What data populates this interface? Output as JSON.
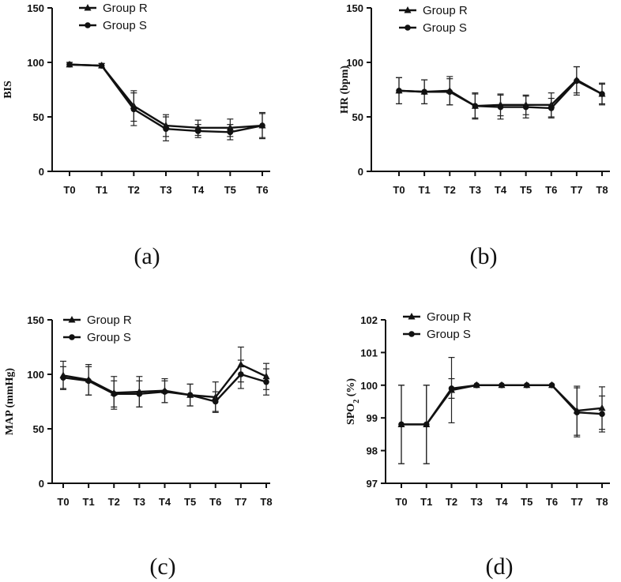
{
  "chart_data": [
    {
      "id": "a",
      "type": "line",
      "caption": "(a)",
      "ylabel": "BIS",
      "ylim": [
        0,
        150
      ],
      "yticks": [
        0,
        50,
        100,
        150
      ],
      "categories": [
        "T0",
        "T1",
        "T2",
        "T3",
        "T4",
        "T5",
        "T6"
      ],
      "legend": [
        "Group R",
        "Group S"
      ],
      "series": [
        {
          "name": "Group R",
          "marker": "triangle",
          "values": [
            98,
            97,
            60,
            42,
            40,
            40,
            42
          ],
          "err": [
            2,
            2,
            14,
            10,
            7,
            8,
            11
          ]
        },
        {
          "name": "Group S",
          "marker": "circle",
          "values": [
            98,
            97,
            57,
            39,
            37,
            36,
            42
          ],
          "err": [
            2,
            2,
            15,
            11,
            6,
            7,
            12
          ]
        }
      ]
    },
    {
      "id": "b",
      "type": "line",
      "caption": "(b)",
      "ylabel": "HR (bpm)",
      "ylim": [
        0,
        150
      ],
      "yticks": [
        0,
        50,
        100,
        150
      ],
      "categories": [
        "T0",
        "T1",
        "T2",
        "T3",
        "T4",
        "T5",
        "T6",
        "T7",
        "T8"
      ],
      "legend": [
        "Group R",
        "Group S"
      ],
      "series": [
        {
          "name": "Group R",
          "marker": "triangle",
          "values": [
            74,
            73,
            74,
            60,
            61,
            61,
            61,
            84,
            71
          ],
          "err": [
            12,
            11,
            13,
            11,
            10,
            9,
            11,
            12,
            10
          ]
        },
        {
          "name": "Group S",
          "marker": "circle",
          "values": [
            74,
            73,
            73,
            60,
            59,
            59,
            58,
            83,
            71
          ],
          "err": [
            12,
            11,
            12,
            12,
            11,
            10,
            9,
            13,
            9
          ]
        }
      ]
    },
    {
      "id": "c",
      "type": "line",
      "caption": "(c)",
      "ylabel": "MAP (mmHg)",
      "ylim": [
        0,
        150
      ],
      "yticks": [
        0,
        50,
        100,
        150
      ],
      "categories": [
        "T0",
        "T1",
        "T2",
        "T3",
        "T4",
        "T5",
        "T6",
        "T7",
        "T8"
      ],
      "legend": [
        "Group R",
        "Group S"
      ],
      "series": [
        {
          "name": "Group R",
          "marker": "triangle",
          "values": [
            99,
            95,
            83,
            84,
            85,
            81,
            79,
            109,
            98
          ],
          "err": [
            13,
            14,
            15,
            14,
            11,
            10,
            14,
            16,
            12
          ]
        },
        {
          "name": "Group S",
          "marker": "circle",
          "values": [
            97,
            94,
            82,
            82,
            84,
            81,
            75,
            100,
            93
          ],
          "err": [
            10,
            13,
            12,
            12,
            10,
            10,
            9,
            13,
            12
          ]
        }
      ]
    },
    {
      "id": "d",
      "type": "line",
      "caption": "(d)",
      "ylabel": "SPO2 (%)",
      "ylabel_main": "SPO",
      "ylabel_sub": "2",
      "ylabel_rest": " (%)",
      "ylim": [
        97,
        102
      ],
      "yticks": [
        97,
        98,
        99,
        100,
        101,
        102
      ],
      "categories": [
        "T0",
        "T1",
        "T2",
        "T3",
        "T4",
        "T5",
        "T6",
        "T7",
        "T8"
      ],
      "legend": [
        "Group R",
        "Group S"
      ],
      "series": [
        {
          "name": "Group R",
          "marker": "triangle",
          "values": [
            98.8,
            98.8,
            99.85,
            100,
            100,
            100,
            100,
            99.22,
            99.3
          ],
          "err": [
            1.2,
            1.2,
            1.0,
            0,
            0,
            0,
            0,
            0.75,
            0.65
          ]
        },
        {
          "name": "Group S",
          "marker": "circle",
          "values": [
            98.8,
            98.8,
            99.9,
            100,
            100,
            100,
            100,
            99.17,
            99.12
          ],
          "err": [
            1.2,
            1.2,
            0.3,
            0,
            0,
            0,
            0,
            0.75,
            0.55
          ]
        }
      ]
    }
  ]
}
